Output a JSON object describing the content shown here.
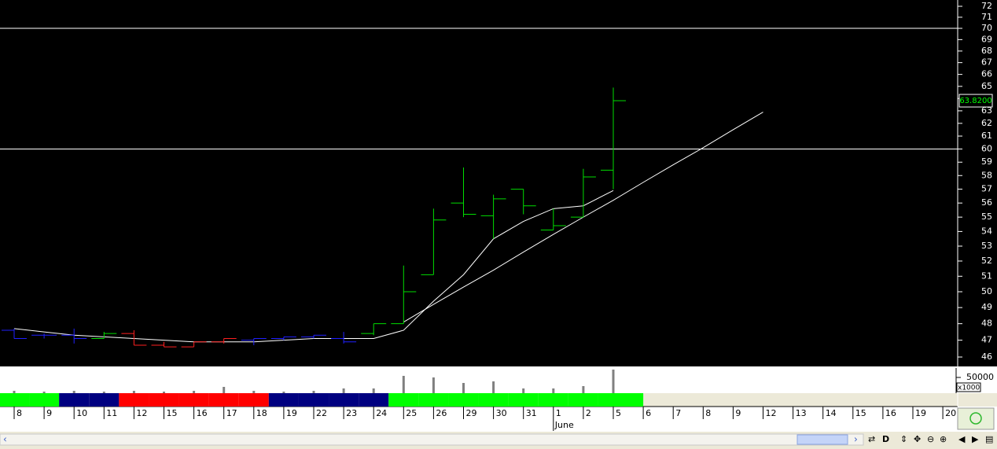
{
  "chart_data": {
    "type": "ohlc",
    "categories": [
      "8",
      "9",
      "10",
      "11",
      "12",
      "15",
      "16",
      "17",
      "18",
      "19",
      "22",
      "23",
      "24",
      "25",
      "26",
      "29",
      "30",
      "31",
      "1",
      "2",
      "5",
      "6",
      "7",
      "8",
      "9",
      "12",
      "13",
      "14",
      "15",
      "16",
      "19",
      "20"
    ],
    "month_label": "June",
    "open": [
      47.6,
      47.3,
      47.3,
      47.1,
      47.4,
      46.7,
      46.6,
      46.9,
      47.0,
      47.1,
      47.2,
      47.1,
      47.4,
      48.0,
      51.1,
      56.0,
      55.1,
      57.0,
      54.1,
      55.0,
      58.4,
      null,
      null,
      null,
      null,
      null,
      null,
      null,
      null,
      null,
      null,
      null
    ],
    "high": [
      47.7,
      47.4,
      47.7,
      47.5,
      47.6,
      46.9,
      46.9,
      47.1,
      47.1,
      47.2,
      47.3,
      47.5,
      48.0,
      51.7,
      55.6,
      58.6,
      56.6,
      57.0,
      55.6,
      58.5,
      64.9,
      null,
      null,
      null,
      null,
      null,
      null,
      null,
      null,
      null,
      null,
      null
    ],
    "low": [
      47.1,
      47.1,
      46.8,
      47.1,
      46.7,
      46.6,
      46.6,
      46.8,
      46.7,
      47.0,
      47.1,
      46.8,
      47.3,
      48.0,
      51.1,
      55.0,
      53.5,
      55.2,
      54.1,
      55.0,
      57.0,
      null,
      null,
      null,
      null,
      null,
      null,
      null,
      null,
      null,
      null,
      null
    ],
    "close": [
      47.1,
      47.3,
      47.1,
      47.4,
      46.7,
      46.6,
      46.9,
      47.1,
      47.1,
      47.2,
      47.3,
      46.9,
      48.0,
      50.0,
      54.8,
      55.2,
      56.3,
      55.8,
      54.4,
      57.9,
      63.82,
      null,
      null,
      null,
      null,
      null,
      null,
      null,
      null,
      null,
      null,
      null
    ],
    "last_price_label": "63.8200",
    "bar_colors": [
      "#2020ff",
      "#2020ff",
      "#2020ff",
      "#00dd00",
      "#ff2020",
      "#ff2020",
      "#ff2020",
      "#ff2020",
      "#2020ff",
      "#2020ff",
      "#2020ff",
      "#2020ff",
      "#00dd00",
      "#00dd00",
      "#00dd00",
      "#00dd00",
      "#00dd00",
      "#00dd00",
      "#00dd00",
      "#00dd00",
      "#00dd00"
    ],
    "band_colors": [
      "#00ff00",
      "#00ff00",
      "#000080",
      "#000080",
      "#ff0000",
      "#ff0000",
      "#ff0000",
      "#ff0000",
      "#ff0000",
      "#000080",
      "#000080",
      "#000080",
      "#000080",
      "#00ff00",
      "#00ff00",
      "#00ff00",
      "#00ff00",
      "#00ff00",
      "#00ff00",
      "#00ff00",
      "#00ff00"
    ],
    "ma": {
      "color": "#ffffff",
      "values": [
        47.7,
        47.5,
        47.3,
        47.2,
        47.1,
        47.0,
        46.9,
        46.9,
        46.9,
        47.0,
        47.1,
        47.1,
        47.1,
        47.6,
        49.4,
        51.1,
        53.5,
        54.7,
        55.6,
        55.8,
        56.9,
        null,
        null,
        null,
        null,
        null,
        null,
        null,
        null,
        null,
        null,
        null
      ]
    },
    "trendline": {
      "color": "#ffffff",
      "values": [
        null,
        null,
        null,
        null,
        null,
        null,
        null,
        null,
        null,
        null,
        null,
        null,
        null,
        48.1,
        49.2,
        50.3,
        51.4,
        52.6,
        53.8,
        55.0,
        56.2,
        57.5,
        58.8,
        60.1,
        61.5,
        62.9,
        null,
        null,
        null,
        null,
        null,
        null
      ]
    },
    "hlines": [
      70,
      60
    ],
    "log_scale": true,
    "ylim": [
      45.45,
      72.58
    ],
    "yticks": [
      46,
      47,
      48,
      49,
      50,
      51,
      52,
      53,
      54,
      55,
      56,
      57,
      58,
      59,
      60,
      61,
      62,
      63,
      64,
      65,
      66,
      67,
      68,
      69,
      70,
      71,
      72
    ],
    "volume": {
      "color": "#808080",
      "values": [
        7500,
        5000,
        7500,
        5000,
        7500,
        5000,
        7500,
        20000,
        7500,
        5000,
        7500,
        15000,
        15000,
        55000,
        50000,
        32500,
        37500,
        15000,
        15000,
        22500,
        75000,
        null,
        null,
        null,
        null,
        null,
        null,
        null,
        null,
        null,
        null,
        null
      ]
    },
    "vlim": [
      0,
      75000
    ],
    "vticks": [
      50000
    ],
    "volume_multiplier": "x1000"
  }
}
